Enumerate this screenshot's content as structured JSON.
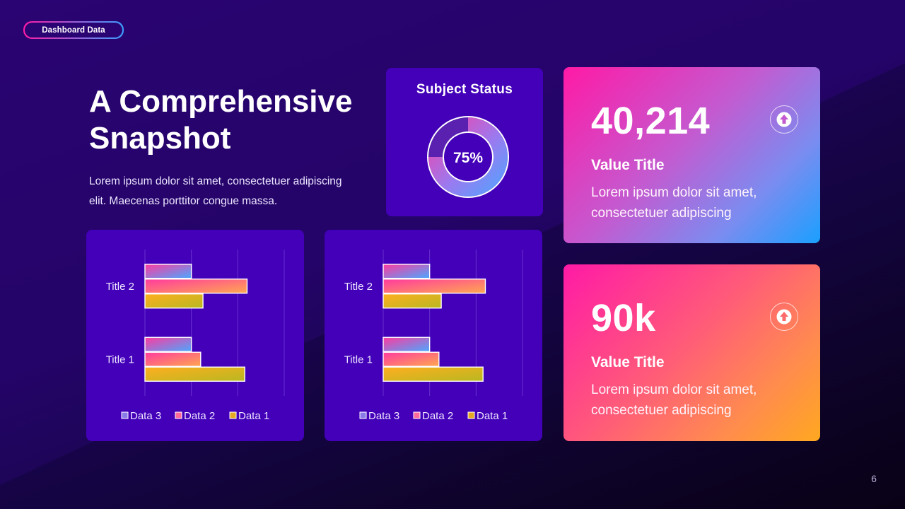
{
  "header": {
    "pill_label": "Dashboard Data"
  },
  "intro": {
    "title_line1": "A Comprehensive",
    "title_line2": "Snapshot",
    "description_line1": "Lorem ipsum dolor sit amet, consectetuer adipiscing",
    "description_line2": "elit. Maecenas porttitor congue massa."
  },
  "status": {
    "title": "Subject Status",
    "percent_label": "75%",
    "percent": 0.75
  },
  "cards": [
    {
      "value": "40,214",
      "label": "Value Title",
      "text_line1": "Lorem ipsum dolor sit amet,",
      "text_line2": "consectetuer adipiscing",
      "icon": "arrow-up-icon"
    },
    {
      "value": "90k",
      "label": "Value Title",
      "text_line1": "Lorem ipsum dolor sit amet,",
      "text_line2": "consectetuer adipiscing",
      "icon": "arrow-up-icon"
    }
  ],
  "colors": {
    "panel": "#4300b8",
    "data1": "#e8b020",
    "data2": "#ff5aa0",
    "data3": "#7a70ff"
  },
  "chart_data": [
    {
      "type": "bar",
      "orientation": "horizontal",
      "categories": [
        "Title 1",
        "Title 2"
      ],
      "series": [
        {
          "name": "Data 3",
          "values": [
            2,
            2
          ]
        },
        {
          "name": "Data 2",
          "values": [
            2.4,
            4.4
          ]
        },
        {
          "name": "Data 1",
          "values": [
            4.3,
            2.5
          ]
        }
      ],
      "xlim": [
        0,
        6
      ],
      "grid": true,
      "legend": "bottom"
    },
    {
      "type": "bar",
      "orientation": "horizontal",
      "categories": [
        "Title 1",
        "Title 2"
      ],
      "series": [
        {
          "name": "Data 3",
          "values": [
            2,
            2
          ]
        },
        {
          "name": "Data 2",
          "values": [
            2.4,
            4.4
          ]
        },
        {
          "name": "Data 1",
          "values": [
            4.3,
            2.5
          ]
        }
      ],
      "xlim": [
        0,
        6
      ],
      "grid": true,
      "legend": "bottom"
    }
  ],
  "footer": {
    "page_number": "6"
  }
}
